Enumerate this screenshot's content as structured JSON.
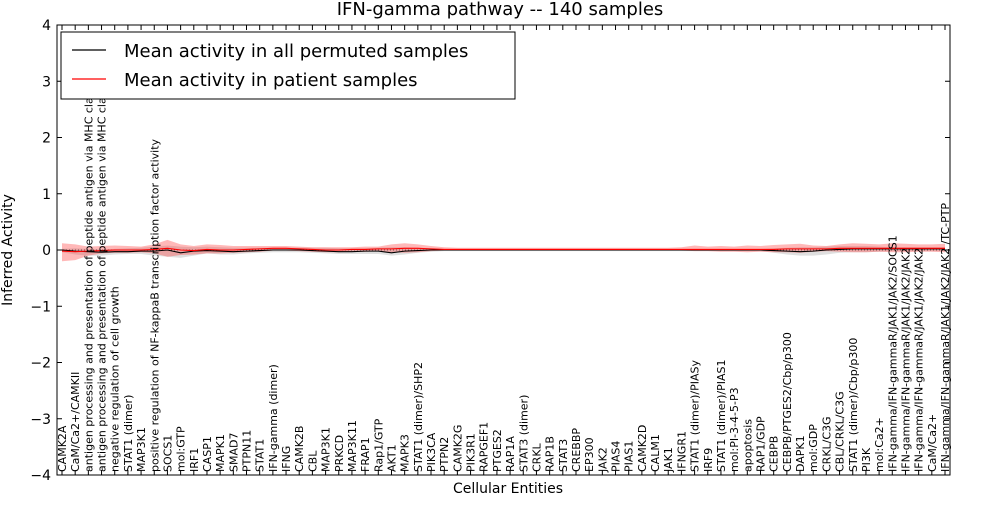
{
  "chart_data": {
    "type": "line",
    "title": "IFN-gamma pathway -- 140 samples",
    "xlabel": "Cellular Entities",
    "ylabel": "Inferred Activity",
    "ylim": [
      -4,
      4
    ],
    "yticks": [
      -4,
      -3,
      -2,
      -1,
      0,
      1,
      2,
      3,
      4
    ],
    "ytick_labels": [
      "−4",
      "−3",
      "−2",
      "−1",
      "0",
      "1",
      "2",
      "3",
      "4"
    ],
    "legend_position": "top-left",
    "grid": false,
    "categories": [
      "CAMK2A",
      "CaM/Ca2+/CAMKII",
      "antigen processing and presentation of peptide antigen via MHC class I",
      "antigen processing and presentation of peptide antigen via MHC class II",
      "negative regulation of cell growth",
      "STAT1 (dimer)",
      "MAP3K1",
      "positive regulation of NF-kappaB transcription factor activity",
      "SOCS1",
      "mol:GTP",
      "IRF1",
      "CASP1",
      "MAPK1",
      "SMAD7",
      "PTPN11",
      "STAT1",
      "IFN-gamma (dimer)",
      "IFNG",
      "CAMK2B",
      "CBL",
      "MAP3K1",
      "PRKCD",
      "MAP3K11",
      "FRAP1",
      "Rap1/GTP",
      "AKT1",
      "MAPK3",
      "STAT1 (dimer)/SHP2",
      "PIK3CA",
      "PTPN2",
      "CAMK2G",
      "PIK3R1",
      "RAPGEF1",
      "PTGES2",
      "RAP1A",
      "STAT3 (dimer)",
      "CRKL",
      "RAP1B",
      "STAT3",
      "CREBBP",
      "EP300",
      "JAK2",
      "PIAS4",
      "PIAS1",
      "CAMK2D",
      "CALM1",
      "JAK1",
      "IFNGR1",
      "STAT1 (dimer)/PIASy",
      "IRF9",
      "STAT1 (dimer)/PIAS1",
      "mol:PI-3-4-5-P3",
      "apoptosis",
      "RAP1/GDP",
      "CEBPB",
      "CEBPB/PTGES2/Cbp/p300",
      "DAPK1",
      "mol:GDP",
      "CRKL/C3G",
      "CBL/CRKL/C3G",
      "STAT1 (dimer)/Cbp/p300",
      "PI3K",
      "mol:Ca2+",
      "IFN-gamma/IFN-gammaR/JAK1/JAK2/SOCS1",
      "IFN-gamma/IFN-gammaR/JAK1/JAK2/JAK2",
      "IFN-gamma/IFN-gammaR/JAK1/JAK2/JAK2",
      "CaM/Ca2+",
      "IFN-gamma/IFN-gammaR/JAK1/JAK2/JAK2 /TC-PTP"
    ],
    "series": [
      {
        "name": "Mean activity in all permuted samples",
        "color": "#000000",
        "values": [
          0.0,
          -0.02,
          -0.03,
          -0.04,
          -0.03,
          -0.03,
          -0.02,
          -0.02,
          0.0,
          -0.05,
          -0.02,
          -0.01,
          -0.02,
          -0.03,
          -0.02,
          -0.01,
          0.0,
          0.0,
          0.0,
          -0.01,
          -0.02,
          -0.03,
          -0.03,
          -0.02,
          -0.02,
          -0.05,
          -0.02,
          -0.01,
          0.0,
          0.0,
          0.0,
          0.0,
          0.0,
          0.0,
          0.0,
          0.0,
          0.0,
          0.0,
          0.0,
          0.0,
          0.0,
          0.0,
          0.0,
          0.0,
          0.0,
          0.0,
          0.0,
          0.0,
          0.0,
          0.0,
          0.0,
          0.0,
          0.0,
          0.0,
          -0.01,
          -0.02,
          -0.03,
          -0.02,
          0.0,
          0.01,
          0.02,
          0.02,
          0.02,
          0.02,
          0.02,
          0.02,
          0.02,
          0.02
        ],
        "band_upper": [
          0.02,
          0.03,
          0.02,
          0.01,
          0.02,
          0.03,
          0.04,
          0.06,
          0.08,
          0.06,
          0.05,
          0.06,
          0.05,
          0.04,
          0.04,
          0.04,
          0.04,
          0.04,
          0.04,
          0.04,
          0.04,
          0.03,
          0.03,
          0.03,
          0.04,
          0.05,
          0.05,
          0.04,
          0.03,
          0.02,
          0.02,
          0.02,
          0.02,
          0.02,
          0.02,
          0.02,
          0.02,
          0.02,
          0.02,
          0.02,
          0.02,
          0.02,
          0.02,
          0.02,
          0.02,
          0.02,
          0.02,
          0.02,
          0.02,
          0.02,
          0.02,
          0.02,
          0.02,
          0.02,
          0.03,
          0.04,
          0.05,
          0.05,
          0.06,
          0.07,
          0.07,
          0.07,
          0.06,
          0.05,
          0.05,
          0.05,
          0.05,
          0.05
        ],
        "band_lower": [
          -0.04,
          -0.08,
          -0.1,
          -0.1,
          -0.08,
          -0.07,
          -0.07,
          -0.1,
          -0.12,
          -0.14,
          -0.1,
          -0.06,
          -0.08,
          -0.08,
          -0.06,
          -0.05,
          -0.04,
          -0.04,
          -0.04,
          -0.05,
          -0.06,
          -0.07,
          -0.07,
          -0.07,
          -0.07,
          -0.1,
          -0.08,
          -0.05,
          -0.03,
          -0.02,
          -0.02,
          -0.02,
          -0.02,
          -0.02,
          -0.02,
          -0.02,
          -0.02,
          -0.02,
          -0.02,
          -0.02,
          -0.02,
          -0.02,
          -0.02,
          -0.02,
          -0.02,
          -0.02,
          -0.02,
          -0.02,
          -0.02,
          -0.02,
          -0.02,
          -0.02,
          -0.02,
          -0.02,
          -0.05,
          -0.08,
          -0.1,
          -0.1,
          -0.08,
          -0.05,
          -0.04,
          -0.04,
          -0.03,
          -0.02,
          -0.02,
          -0.02,
          -0.02,
          -0.02
        ]
      },
      {
        "name": "Mean activity in patient samples",
        "color": "#ff0000",
        "values": [
          -0.02,
          -0.03,
          -0.02,
          -0.01,
          0.0,
          0.0,
          0.0,
          0.01,
          0.03,
          0.0,
          -0.01,
          0.01,
          0.0,
          0.0,
          0.01,
          0.02,
          0.03,
          0.03,
          0.02,
          0.01,
          0.0,
          0.0,
          0.01,
          0.01,
          0.02,
          0.02,
          0.03,
          0.03,
          0.02,
          0.01,
          0.01,
          0.01,
          0.01,
          0.01,
          0.01,
          0.01,
          0.01,
          0.01,
          0.01,
          0.01,
          0.01,
          0.01,
          0.01,
          0.01,
          0.01,
          0.01,
          0.01,
          0.01,
          0.01,
          0.01,
          0.01,
          0.01,
          0.01,
          0.01,
          0.01,
          0.02,
          0.02,
          0.02,
          0.02,
          0.03,
          0.03,
          0.03,
          0.03,
          0.03,
          0.03,
          0.03,
          0.03,
          0.03
        ],
        "band_upper": [
          0.12,
          0.1,
          0.06,
          0.07,
          0.08,
          0.07,
          0.06,
          0.1,
          0.18,
          0.1,
          0.07,
          0.1,
          0.09,
          0.07,
          0.07,
          0.07,
          0.07,
          0.07,
          0.06,
          0.05,
          0.05,
          0.05,
          0.05,
          0.06,
          0.06,
          0.1,
          0.12,
          0.1,
          0.07,
          0.05,
          0.04,
          0.04,
          0.04,
          0.04,
          0.04,
          0.04,
          0.04,
          0.04,
          0.04,
          0.04,
          0.04,
          0.04,
          0.04,
          0.04,
          0.04,
          0.04,
          0.04,
          0.05,
          0.08,
          0.06,
          0.07,
          0.06,
          0.08,
          0.07,
          0.09,
          0.1,
          0.11,
          0.08,
          0.07,
          0.1,
          0.12,
          0.11,
          0.1,
          0.12,
          0.11,
          0.1,
          0.1,
          0.11
        ],
        "band_lower": [
          -0.2,
          -0.18,
          -0.1,
          -0.06,
          -0.05,
          -0.05,
          -0.04,
          -0.06,
          -0.12,
          -0.09,
          -0.08,
          -0.06,
          -0.06,
          -0.05,
          -0.04,
          -0.03,
          -0.01,
          -0.01,
          -0.02,
          -0.03,
          -0.04,
          -0.04,
          -0.03,
          -0.03,
          -0.02,
          -0.04,
          -0.05,
          -0.04,
          -0.02,
          -0.01,
          -0.01,
          -0.01,
          -0.01,
          -0.01,
          -0.01,
          -0.01,
          -0.01,
          -0.01,
          -0.01,
          -0.01,
          -0.01,
          -0.01,
          -0.01,
          -0.01,
          -0.01,
          -0.01,
          -0.01,
          -0.01,
          -0.02,
          -0.02,
          -0.03,
          -0.03,
          -0.04,
          -0.03,
          -0.04,
          -0.04,
          -0.05,
          -0.03,
          -0.02,
          -0.03,
          -0.04,
          -0.04,
          -0.03,
          -0.04,
          -0.04,
          -0.03,
          -0.03,
          -0.04
        ]
      }
    ]
  }
}
